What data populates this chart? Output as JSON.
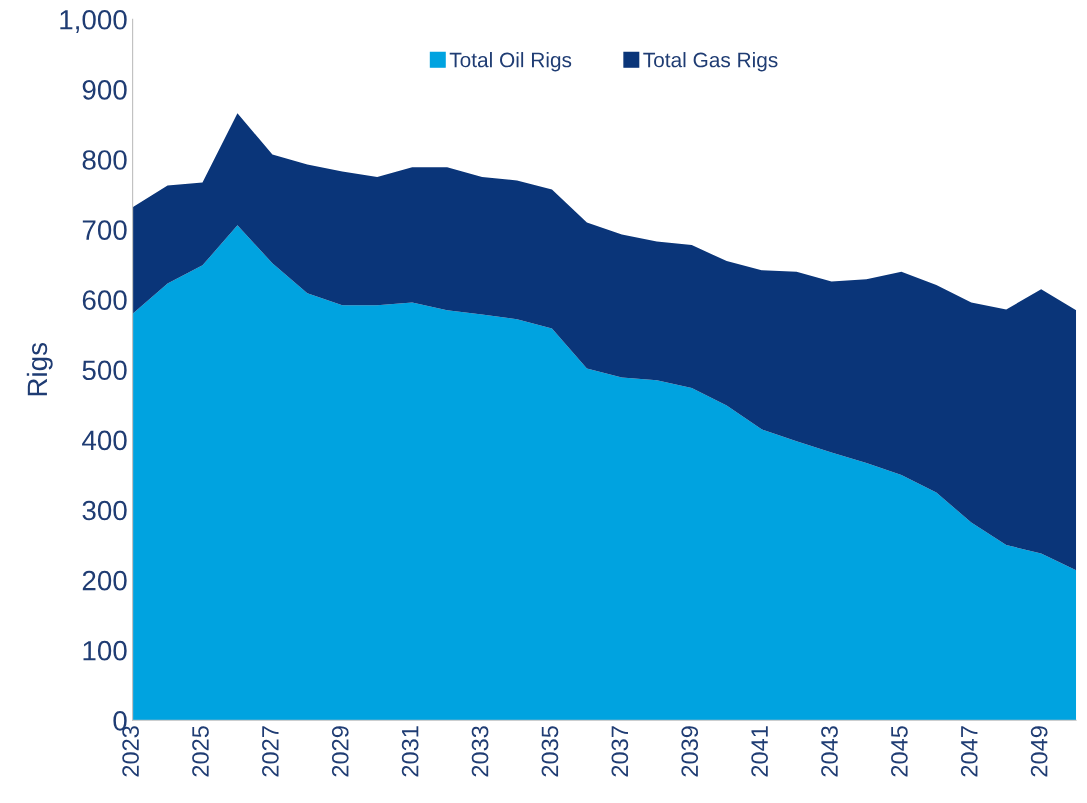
{
  "chart_data": {
    "type": "area",
    "stacked": true,
    "ylabel": "Rigs",
    "x": [
      2023,
      2024,
      2025,
      2026,
      2027,
      2028,
      2029,
      2030,
      2031,
      2032,
      2033,
      2034,
      2035,
      2036,
      2037,
      2038,
      2039,
      2040,
      2041,
      2042,
      2043,
      2044,
      2045,
      2046,
      2047,
      2048,
      2049,
      2050
    ],
    "series": [
      {
        "name": "Total Oil Rigs",
        "color": "#00a3e0",
        "values": [
          580,
          623,
          649,
          706,
          652,
          609,
          592,
          592,
          596,
          585,
          579,
          572,
          559,
          502,
          489,
          485,
          474,
          449,
          415,
          398,
          382,
          367,
          350,
          325,
          282,
          250,
          238,
          214
        ]
      },
      {
        "name": "Total Gas Rigs",
        "color": "#0a3579",
        "values": [
          152,
          140,
          118,
          160,
          155,
          184,
          191,
          183,
          193,
          204,
          196,
          198,
          198,
          208,
          204,
          198,
          204,
          206,
          227,
          242,
          244,
          262,
          290,
          296,
          314,
          336,
          377,
          371
        ]
      }
    ],
    "xlim": [
      2023,
      2050
    ],
    "xticks": [
      2023,
      2025,
      2027,
      2029,
      2031,
      2033,
      2035,
      2037,
      2039,
      2041,
      2043,
      2045,
      2047,
      2049
    ],
    "ylim": [
      0,
      1000
    ],
    "yticks": [
      0,
      100,
      200,
      300,
      400,
      500,
      600,
      700,
      800,
      900,
      {
        "value": 1000,
        "label": "1,000"
      }
    ],
    "grid": false,
    "legend": "top"
  }
}
